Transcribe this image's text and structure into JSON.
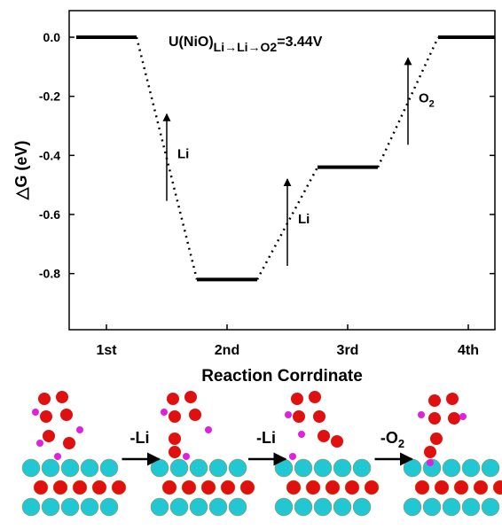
{
  "chart_data": {
    "type": "energy-levels",
    "ylabel": "△G (eV)",
    "xlabel": "Reaction Corrdinate",
    "categories": [
      "1st",
      "2nd",
      "3rd",
      "4th"
    ],
    "values": [
      0.0,
      -0.82,
      -0.44,
      0.0
    ],
    "color": "#000000",
    "ylim": [
      -0.99,
      0.09
    ],
    "yticks": [
      {
        "value": 0,
        "label": "0.0"
      },
      -0.2,
      -0.4,
      -0.6,
      -0.8
    ],
    "annotation": {
      "main": "U(NiO)",
      "sub": "Li→Li→O2",
      "tail": "=3.44V"
    },
    "step_labels": [
      {
        "text": "Li"
      },
      {
        "text": "Li"
      },
      {
        "text": "O",
        "sub": "2"
      }
    ]
  },
  "scheme": {
    "steps": [
      {
        "text": "-Li"
      },
      {
        "text": "-Li"
      },
      {
        "text": "-O",
        "sub": "2"
      }
    ]
  }
}
